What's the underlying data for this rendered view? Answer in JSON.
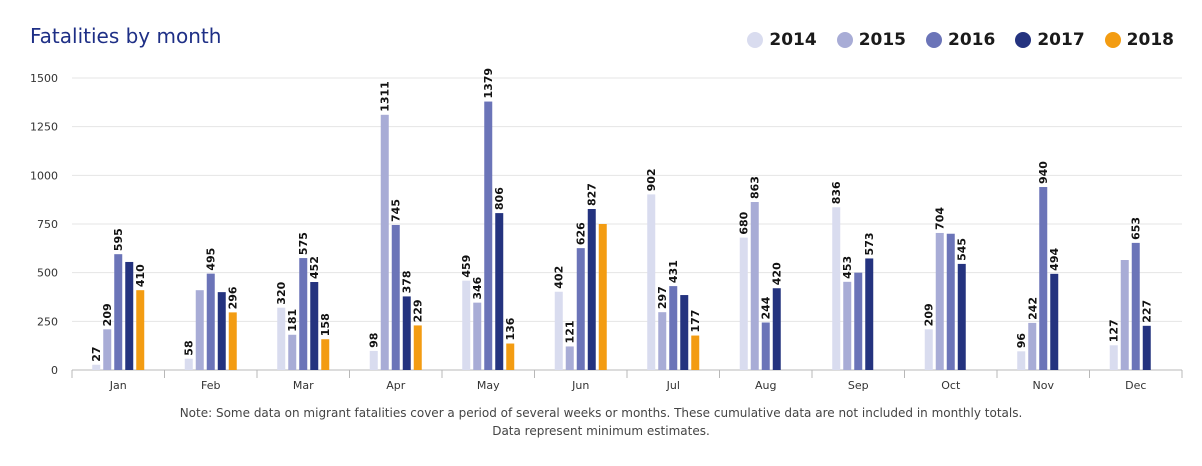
{
  "chart_data": {
    "type": "bar",
    "title": "Fatalities by month",
    "categories": [
      "Jan",
      "Feb",
      "Mar",
      "Apr",
      "May",
      "Jun",
      "Jul",
      "Aug",
      "Sep",
      "Oct",
      "Nov",
      "Dec"
    ],
    "series": [
      {
        "name": "2014",
        "color": "#d9dcef",
        "values": [
          27,
          58,
          320,
          98,
          459,
          402,
          902,
          680,
          836,
          209,
          96,
          127
        ]
      },
      {
        "name": "2015",
        "color": "#a8acd6",
        "values": [
          209,
          410,
          181,
          1311,
          346,
          121,
          297,
          863,
          453,
          704,
          242,
          565
        ]
      },
      {
        "name": "2016",
        "color": "#6b74b8",
        "values": [
          595,
          495,
          575,
          745,
          1379,
          626,
          431,
          244,
          500,
          700,
          940,
          653
        ]
      },
      {
        "name": "2017",
        "color": "#24337f",
        "values": [
          555,
          400,
          452,
          378,
          806,
          827,
          385,
          420,
          573,
          545,
          494,
          227
        ]
      },
      {
        "name": "2018",
        "color": "#f39c12",
        "values": [
          410,
          296,
          158,
          229,
          136,
          750,
          177,
          null,
          null,
          null,
          null,
          null
        ]
      }
    ],
    "labels": [
      [
        27,
        209,
        595,
        null,
        410
      ],
      [
        58,
        null,
        495,
        null,
        296
      ],
      [
        320,
        181,
        575,
        452,
        158
      ],
      [
        98,
        1311,
        745,
        378,
        229
      ],
      [
        459,
        346,
        1379,
        806,
        136
      ],
      [
        402,
        121,
        626,
        827,
        null
      ],
      [
        902,
        297,
        431,
        null,
        177
      ],
      [
        680,
        863,
        244,
        420,
        null
      ],
      [
        836,
        453,
        null,
        573,
        null
      ],
      [
        209,
        704,
        null,
        545,
        null
      ],
      [
        96,
        242,
        940,
        494,
        null
      ],
      [
        127,
        null,
        653,
        227,
        null
      ]
    ],
    "yticks": [
      0,
      250,
      500,
      750,
      1000,
      1250,
      1500
    ],
    "ylim": [
      0,
      1500
    ],
    "grid": true,
    "legend_position": "top-right"
  },
  "note": {
    "line1": "Note: Some data on migrant fatalities cover a period of several weeks or months. These cumulative data are not included in monthly totals.",
    "line2": "Data represent minimum estimates."
  }
}
